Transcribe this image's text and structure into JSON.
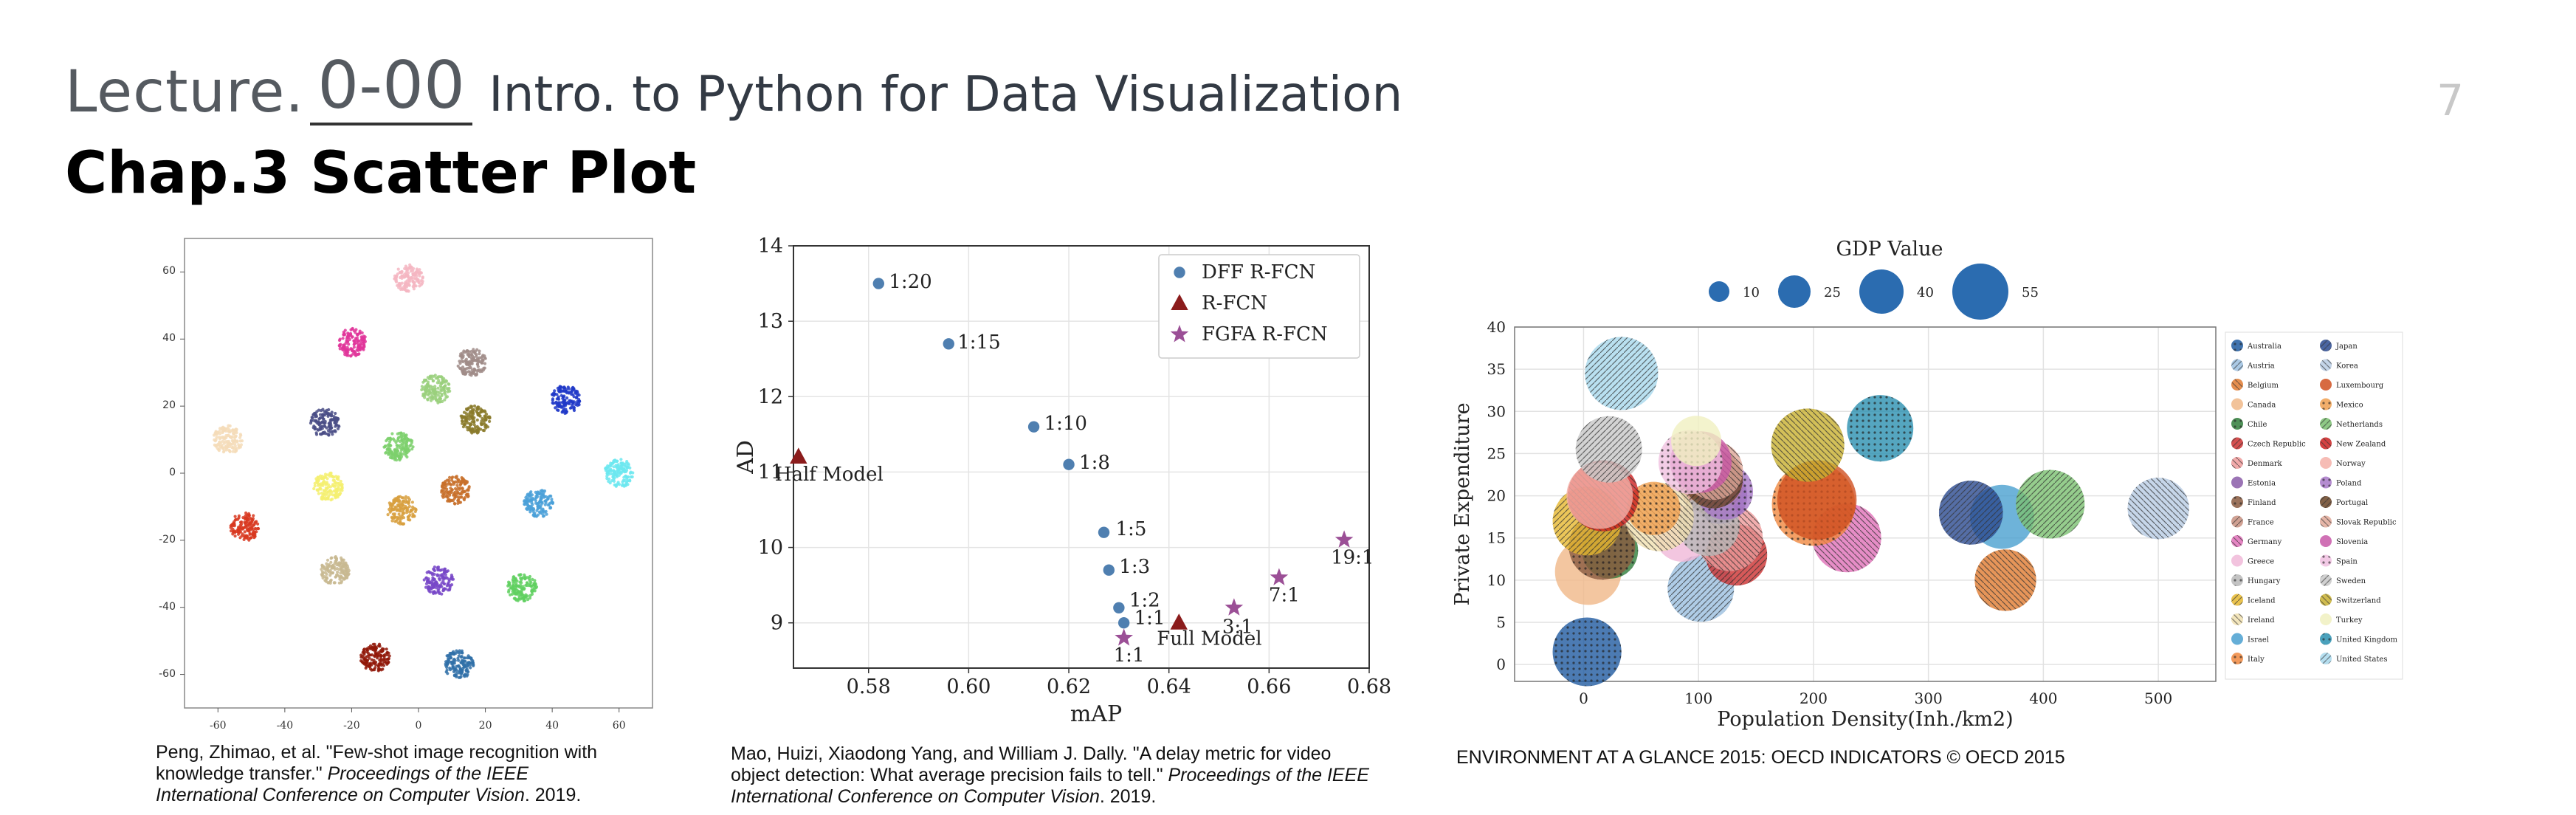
{
  "header": {
    "lecture_label": "Lecture.",
    "lecture_number": "0-00",
    "lecture_title": "Intro. to Python for Data Visualization",
    "page_number": "7",
    "chapter_title": "Chap.3 Scatter Plot"
  },
  "captions": {
    "left": {
      "text": "Peng, Zhimao, et al. \"Few-shot image recognition with knowledge transfer.\"",
      "italic": "Proceedings of the IEEE International Conference on Computer Vision",
      "year": ". 2019."
    },
    "middle": {
      "text": "Mao, Huizi, Xiaodong Yang, and William J. Dally. \"A delay metric for video object detection: What average precision fails to tell.\"",
      "italic": "Proceedings of the IEEE International Conference on Computer Vision",
      "year": ". 2019."
    },
    "right": {
      "text": "ENVIRONMENT AT A GLANCE 2015: OECD INDICATORS © OECD 2015"
    }
  },
  "chart_data": [
    {
      "type": "scatter",
      "xlim": [
        -70,
        70
      ],
      "ylim": [
        -70,
        70
      ],
      "xticks": [
        -60,
        -40,
        -20,
        0,
        20,
        40,
        60
      ],
      "yticks": [
        60,
        40,
        20,
        0,
        -20,
        -40,
        -60
      ],
      "clusters": [
        {
          "x": -3,
          "y": 58,
          "color": "#f4b6c2"
        },
        {
          "x": -20,
          "y": 39,
          "color": "#e0359a"
        },
        {
          "x": 16,
          "y": 33,
          "color": "#a08c88"
        },
        {
          "x": 5,
          "y": 25,
          "color": "#9ad07c"
        },
        {
          "x": 44,
          "y": 22,
          "color": "#2038c8"
        },
        {
          "x": -28,
          "y": 15,
          "color": "#4a4e86"
        },
        {
          "x": 17,
          "y": 16,
          "color": "#8a7a2a"
        },
        {
          "x": -57,
          "y": 10,
          "color": "#f4dcb8"
        },
        {
          "x": -6,
          "y": 8,
          "color": "#7cd06c"
        },
        {
          "x": 60,
          "y": 0,
          "color": "#6ce8f0"
        },
        {
          "x": -27,
          "y": -4,
          "color": "#f4f070"
        },
        {
          "x": 11,
          "y": -5,
          "color": "#c8702a"
        },
        {
          "x": 36,
          "y": -9,
          "color": "#4aa0d8"
        },
        {
          "x": -5,
          "y": -11,
          "color": "#d8a040"
        },
        {
          "x": -52,
          "y": -16,
          "color": "#d83820"
        },
        {
          "x": -25,
          "y": -29,
          "color": "#c8b890"
        },
        {
          "x": 6,
          "y": -32,
          "color": "#7848c8"
        },
        {
          "x": 31,
          "y": -34,
          "color": "#60d060"
        },
        {
          "x": -13,
          "y": -55,
          "color": "#901808"
        },
        {
          "x": 12,
          "y": -57,
          "color": "#3070a8"
        }
      ]
    },
    {
      "type": "scatter",
      "xlabel": "mAP",
      "ylabel": "AD",
      "xlim": [
        0.565,
        0.68
      ],
      "ylim": [
        8.4,
        14
      ],
      "xticks": [
        "0.58",
        "0.60",
        "0.62",
        "0.64",
        "0.66",
        "0.68"
      ],
      "yticks": [
        "14",
        "13",
        "12",
        "11",
        "10",
        "9"
      ],
      "legend_position": "top-right",
      "series": [
        {
          "name": "DFF R-FCN",
          "marker": "circle",
          "color": "#4f7fb0",
          "points": [
            {
              "x": 0.582,
              "y": 13.5,
              "label": "1:20"
            },
            {
              "x": 0.596,
              "y": 12.7,
              "label": "1:15"
            },
            {
              "x": 0.613,
              "y": 11.6,
              "label": "1:10"
            },
            {
              "x": 0.62,
              "y": 11.1,
              "label": "1:8"
            },
            {
              "x": 0.627,
              "y": 10.2,
              "label": "1:5"
            },
            {
              "x": 0.628,
              "y": 9.7,
              "label": "1:3"
            },
            {
              "x": 0.63,
              "y": 9.2,
              "label": "1:2"
            },
            {
              "x": 0.631,
              "y": 9.0,
              "label": "1:1"
            }
          ]
        },
        {
          "name": "R-FCN",
          "marker": "triangle",
          "color": "#8b1c1c",
          "points": [
            {
              "x": 0.566,
              "y": 11.2,
              "label": "Half Model"
            },
            {
              "x": 0.642,
              "y": 9.0,
              "label": "Full Model"
            }
          ]
        },
        {
          "name": "FGFA R-FCN",
          "marker": "star",
          "color": "#9b4f96",
          "points": [
            {
              "x": 0.631,
              "y": 8.8,
              "label": "1:1"
            },
            {
              "x": 0.653,
              "y": 9.2,
              "label": "3:1"
            },
            {
              "x": 0.662,
              "y": 9.6,
              "label": "7:1"
            },
            {
              "x": 0.675,
              "y": 10.1,
              "label": "19:1"
            }
          ]
        }
      ]
    },
    {
      "type": "scatter",
      "title": "GDP Value",
      "xlabel": "Population Density(Inh./km2)",
      "ylabel": "Private Expenditure",
      "xlim": [
        -60,
        550
      ],
      "ylim": [
        -2,
        40
      ],
      "xticks": [
        0,
        100,
        200,
        300,
        400,
        500
      ],
      "yticks": [
        40,
        35,
        30,
        25,
        20,
        15,
        10,
        5,
        0
      ],
      "size_legend": [
        10,
        25,
        40,
        55
      ],
      "countries": [
        {
          "name": "Australia",
          "x": 3,
          "y": 1.5,
          "gdp": 30,
          "color": "#1f5aa0"
        },
        {
          "name": "Austria",
          "x": 102,
          "y": 9,
          "gdp": 28,
          "color": "#9bbfe0"
        },
        {
          "name": "Belgium",
          "x": 367,
          "y": 10,
          "gdp": 24,
          "color": "#e07a30"
        },
        {
          "name": "Canada",
          "x": 4,
          "y": 11,
          "gdp": 28,
          "color": "#f0b888"
        },
        {
          "name": "Chile",
          "x": 23,
          "y": 13.5,
          "gdp": 20,
          "color": "#2f7d3a"
        },
        {
          "name": "Czech Republic",
          "x": 133,
          "y": 13,
          "gdp": 24,
          "color": "#cc3030"
        },
        {
          "name": "Denmark",
          "x": 127,
          "y": 15,
          "gdp": 28,
          "color": "#ee9a9a"
        },
        {
          "name": "Estonia",
          "x": 118,
          "y": 20,
          "gdp": 20,
          "color": "#8a5ca8"
        },
        {
          "name": "Finland",
          "x": 16,
          "y": 14,
          "gdp": 28,
          "color": "#8a5a40"
        },
        {
          "name": "France",
          "x": 111,
          "y": 21.5,
          "gdp": 26,
          "color": "#c89080"
        },
        {
          "name": "Germany",
          "x": 229,
          "y": 15,
          "gdp": 30,
          "color": "#e070b8"
        },
        {
          "name": "Greece",
          "x": 86,
          "y": 15.5,
          "gdp": 20,
          "color": "#f0b8d8"
        },
        {
          "name": "Hungary",
          "x": 109,
          "y": 16.5,
          "gdp": 24,
          "color": "#b8b8b8"
        },
        {
          "name": "Iceland",
          "x": 3,
          "y": 17,
          "gdp": 30,
          "color": "#e6b830"
        },
        {
          "name": "Ireland",
          "x": 66,
          "y": 17.5,
          "gdp": 30,
          "color": "#f0e0b0"
        },
        {
          "name": "Israel",
          "x": 364,
          "y": 17.5,
          "gdp": 26,
          "color": "#4aa0d0"
        },
        {
          "name": "Italy",
          "x": 200,
          "y": 19,
          "gdp": 44,
          "color": "#f08840"
        },
        {
          "name": "Japan",
          "x": 337,
          "y": 18,
          "gdp": 26,
          "color": "#2a4a90"
        },
        {
          "name": "Korea",
          "x": 500,
          "y": 18.5,
          "gdp": 24,
          "color": "#b8cce4"
        },
        {
          "name": "Luxembourg",
          "x": 203,
          "y": 19.5,
          "gdp": 40,
          "color": "#d05020"
        },
        {
          "name": "Mexico",
          "x": 61,
          "y": 18.5,
          "gdp": 18,
          "color": "#f0a050"
        },
        {
          "name": "Netherlands",
          "x": 406,
          "y": 19,
          "gdp": 30,
          "color": "#7ac070"
        },
        {
          "name": "New Zealand",
          "x": 17,
          "y": 20,
          "gdp": 32,
          "color": "#cc2020"
        },
        {
          "name": "Norway",
          "x": 14,
          "y": 20,
          "gdp": 28,
          "color": "#f4b0a8"
        },
        {
          "name": "Poland",
          "x": 123,
          "y": 20.5,
          "gdp": 20,
          "color": "#a878c8"
        },
        {
          "name": "Portugal",
          "x": 113,
          "y": 22,
          "gdp": 22,
          "color": "#6b4426"
        },
        {
          "name": "Slovak Republic",
          "x": 113,
          "y": 23,
          "gdp": 22,
          "color": "#e0a898"
        },
        {
          "name": "Slovenia",
          "x": 102,
          "y": 24,
          "gdp": 24,
          "color": "#c858a8"
        },
        {
          "name": "Spain",
          "x": 93,
          "y": 24,
          "gdp": 26,
          "color": "#f0c0e0"
        },
        {
          "name": "Sweden",
          "x": 22,
          "y": 25.5,
          "gdp": 28,
          "color": "#c8c8c8"
        },
        {
          "name": "Switzerland",
          "x": 195,
          "y": 26,
          "gdp": 34,
          "color": "#c8b030"
        },
        {
          "name": "Turkey",
          "x": 98,
          "y": 26.5,
          "gdp": 16,
          "color": "#f0f0c0"
        },
        {
          "name": "United Kingdom",
          "x": 258,
          "y": 28,
          "gdp": 28,
          "color": "#2a90b0"
        },
        {
          "name": "United States",
          "x": 33,
          "y": 34.5,
          "gdp": 34,
          "color": "#a8d8ec"
        }
      ]
    }
  ]
}
